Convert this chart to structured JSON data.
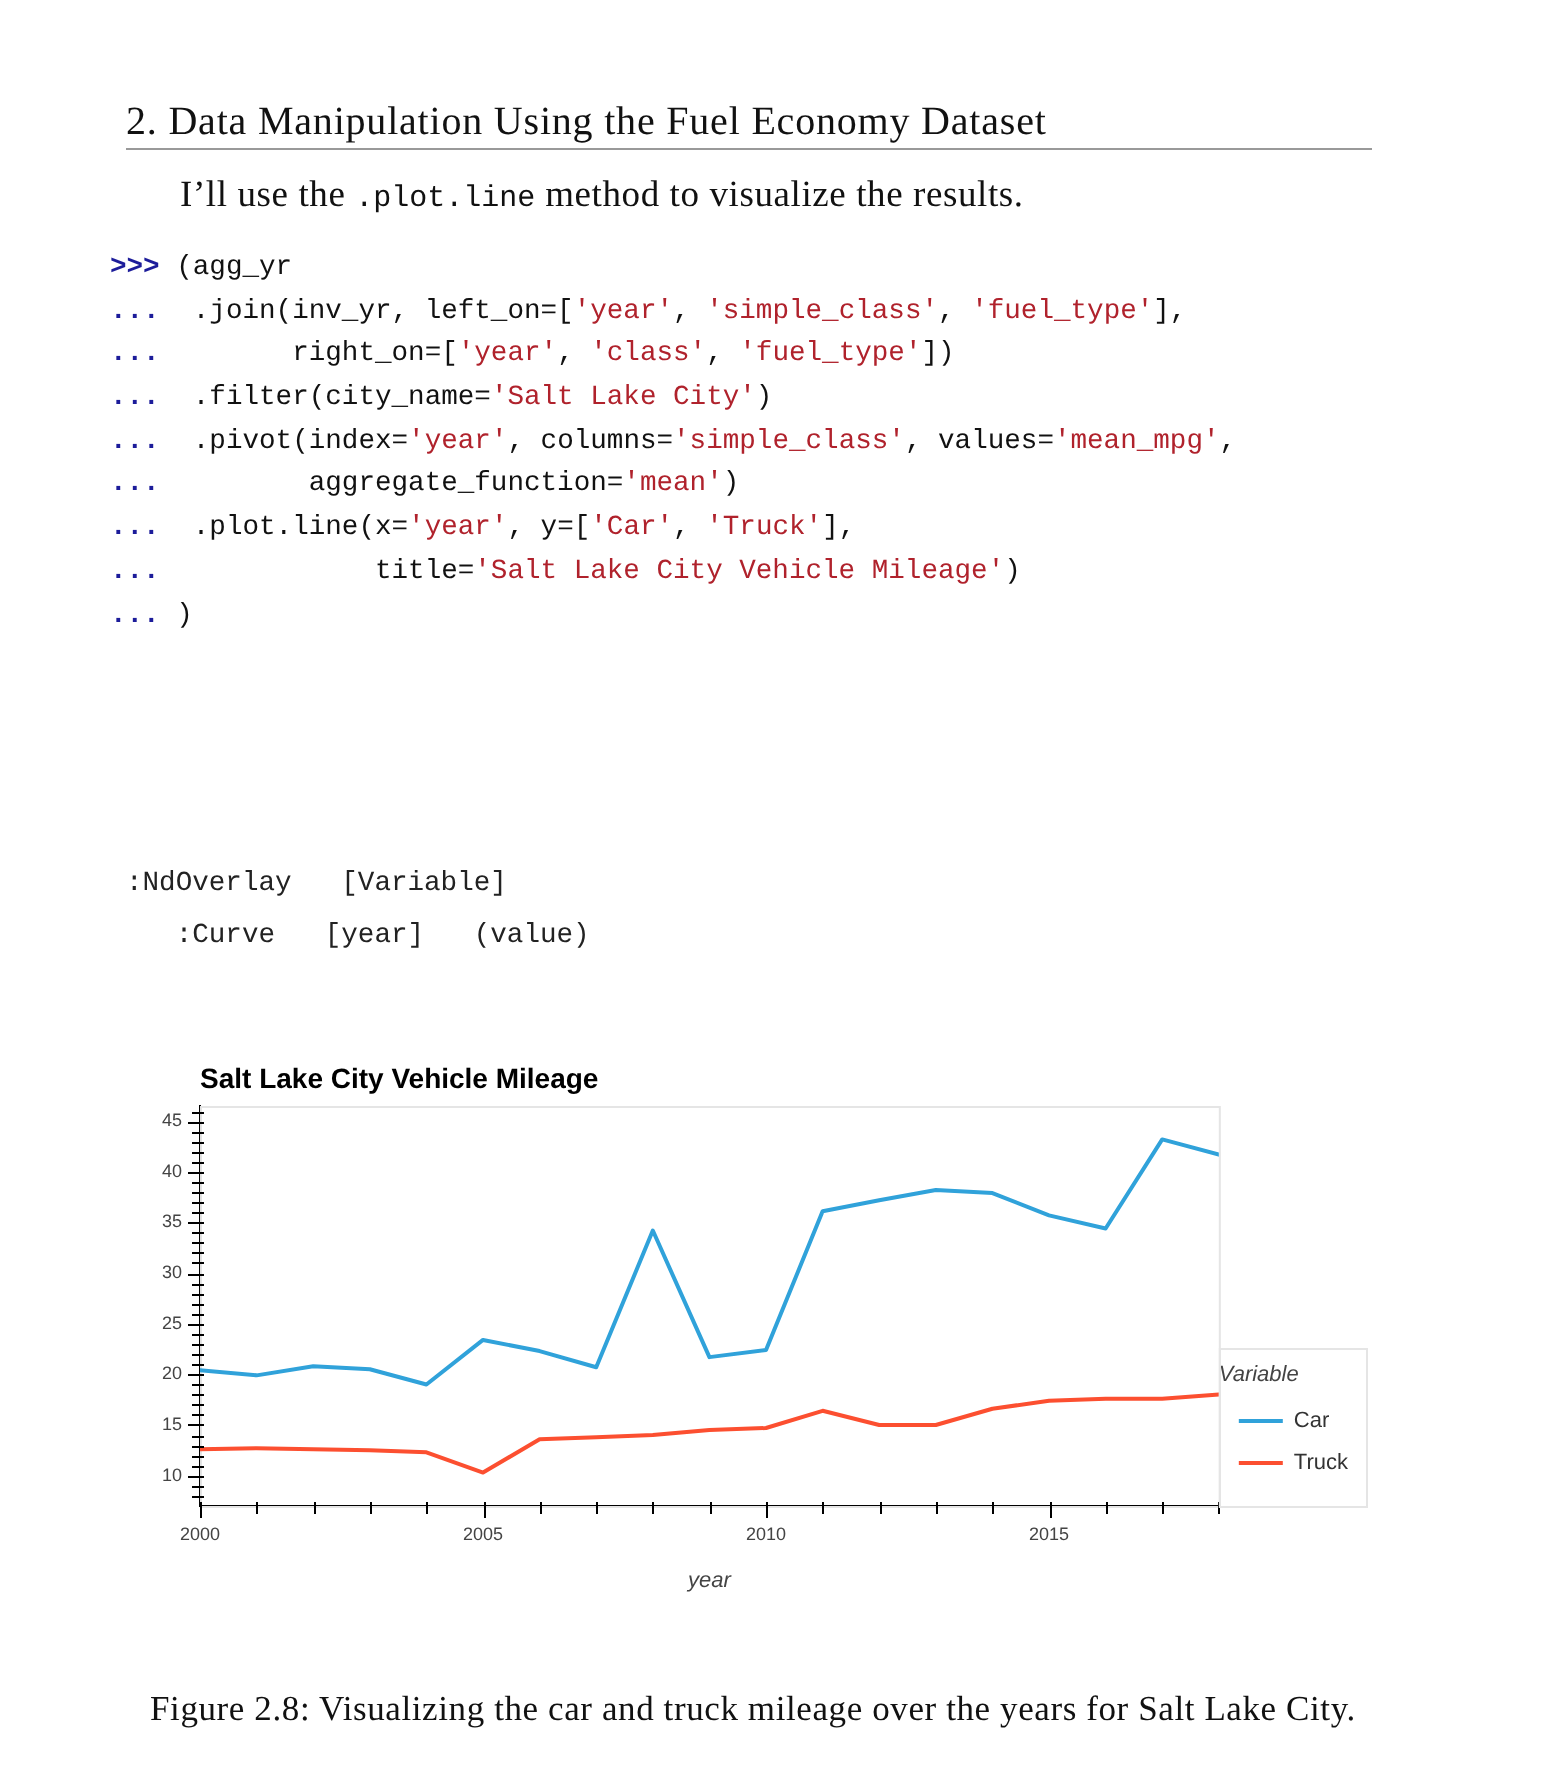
{
  "chart_data": {
    "type": "line",
    "title": "Salt Lake City Vehicle Mileage",
    "xlabel": "year",
    "legend_title": "Variable",
    "x": [
      2000,
      2001,
      2002,
      2003,
      2004,
      2005,
      2006,
      2007,
      2008,
      2009,
      2010,
      2011,
      2012,
      2013,
      2014,
      2015,
      2016,
      2017,
      2018
    ],
    "series": [
      {
        "name": "Car",
        "color": "#30a2da",
        "values": [
          20.4,
          19.9,
          20.8,
          20.5,
          19.0,
          23.4,
          22.3,
          20.7,
          34.2,
          21.7,
          22.4,
          36.1,
          37.2,
          38.2,
          37.9,
          35.7,
          34.4,
          43.2,
          41.7
        ]
      },
      {
        "name": "Truck",
        "color": "#fc4f30",
        "values": [
          12.6,
          12.7,
          12.6,
          12.5,
          12.3,
          10.3,
          13.6,
          13.8,
          14.0,
          14.5,
          14.7,
          16.4,
          15.0,
          15.0,
          16.6,
          17.4,
          17.6,
          17.6,
          18.0
        ]
      }
    ],
    "xlim": [
      2000,
      2018
    ],
    "xticks": [
      2000,
      {
        "value": 2001,
        "label": null
      },
      {
        "value": 2002,
        "label": null
      },
      {
        "value": 2003,
        "label": null
      },
      {
        "value": 2004,
        "label": null
      },
      2005,
      {
        "value": 2006,
        "label": null
      },
      {
        "value": 2007,
        "label": null
      },
      {
        "value": 2008,
        "label": null
      },
      {
        "value": 2009,
        "label": null
      },
      2010,
      {
        "value": 2011,
        "label": null
      },
      {
        "value": 2012,
        "label": null
      },
      {
        "value": 2013,
        "label": null
      },
      {
        "value": 2014,
        "label": null
      },
      2015,
      {
        "value": 2016,
        "label": null
      },
      {
        "value": 2017,
        "label": null
      },
      {
        "value": 2018,
        "label": null
      }
    ],
    "ylim": [
      7,
      46.5
    ],
    "yticks": [
      {
        "value": 8,
        "label": null
      },
      {
        "value": 9,
        "label": null
      },
      10,
      {
        "value": 11,
        "label": null
      },
      {
        "value": 12,
        "label": null
      },
      {
        "value": 13,
        "label": null
      },
      {
        "value": 14,
        "label": null
      },
      15,
      {
        "value": 16,
        "label": null
      },
      {
        "value": 17,
        "label": null
      },
      {
        "value": 18,
        "label": null
      },
      {
        "value": 19,
        "label": null
      },
      20,
      {
        "value": 21,
        "label": null
      },
      {
        "value": 22,
        "label": null
      },
      {
        "value": 23,
        "label": null
      },
      {
        "value": 24,
        "label": null
      },
      25,
      {
        "value": 26,
        "label": null
      },
      {
        "value": 27,
        "label": null
      },
      {
        "value": 28,
        "label": null
      },
      {
        "value": 29,
        "label": null
      },
      30,
      {
        "value": 31,
        "label": null
      },
      {
        "value": 32,
        "label": null
      },
      {
        "value": 33,
        "label": null
      },
      {
        "value": 34,
        "label": null
      },
      35,
      {
        "value": 36,
        "label": null
      },
      {
        "value": 37,
        "label": null
      },
      {
        "value": 38,
        "label": null
      },
      {
        "value": 39,
        "label": null
      },
      40,
      {
        "value": 41,
        "label": null
      },
      {
        "value": 42,
        "label": null
      },
      {
        "value": 43,
        "label": null
      },
      {
        "value": 44,
        "label": null
      },
      45,
      {
        "value": 46,
        "label": null
      }
    ],
    "legend": "bottom right",
    "annotations": [
      "2. Data Manipulation Using the Fuel Economy Dataset",
      "I’ll use the .plot.line method to visualize the results.",
      ">>> (agg_yr\n...  .join(inv_yr, left_on=['year', 'simple_class', 'fuel_type'],\n...        right_on=['year', 'class', 'fuel_type'])\n...  .filter(city_name='Salt Lake City')\n...  .pivot(index='year', columns='simple_class', values='mean_mpg',\n...         aggregate_function='mean')\n...  .plot.line(x='year', y=['Car', 'Truck'],\n...             title='Salt Lake City Vehicle Mileage')\n... )",
      ":NdOverlay   [Variable]\n   :Curve   [year]   (value)",
      "Figure 2.8: Visualizing the car and truck mileage over the years for Salt Lake City."
    ]
  }
}
